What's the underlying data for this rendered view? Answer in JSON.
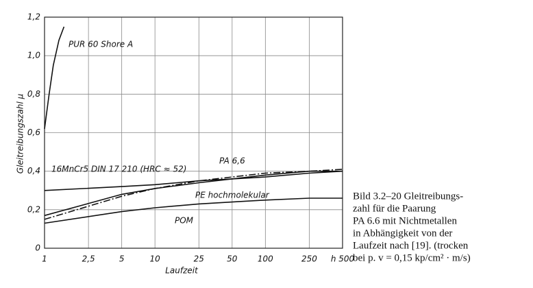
{
  "chart_data": {
    "type": "line",
    "y_label": "Gleitreibungszahl μ",
    "x_label": "Laufzeit",
    "xlog": true,
    "grid": true,
    "xlim": [
      1,
      500
    ],
    "ylim": [
      0,
      1.2
    ],
    "xticks": [
      1,
      {
        "value": 2.5,
        "label": "2,5"
      },
      5,
      10,
      25,
      50,
      100,
      250,
      {
        "value": 500,
        "label": "h 500"
      }
    ],
    "yticks": [
      0,
      {
        "value": 0.2,
        "label": "0,2"
      },
      {
        "value": 0.4,
        "label": "0,4"
      },
      {
        "value": 0.6,
        "label": "0,6"
      },
      {
        "value": 0.8,
        "label": "0,8"
      },
      {
        "value": 1.0,
        "label": "1,0"
      },
      {
        "value": 1.2,
        "label": "1,2"
      }
    ],
    "series": [
      {
        "name": "PUR 60 Shore A",
        "color": "#111111",
        "style": "solid",
        "x": [
          1,
          1.1,
          1.2,
          1.35,
          1.5
        ],
        "values": [
          0.62,
          0.8,
          0.95,
          1.08,
          1.15
        ]
      },
      {
        "name": "16MnCr5 DIN 17 210 (HRC ≈ 52)",
        "color": "#111111",
        "style": "solid",
        "x": [
          1,
          5,
          10,
          25,
          50,
          100,
          250,
          500
        ],
        "values": [
          0.3,
          0.32,
          0.33,
          0.35,
          0.36,
          0.37,
          0.39,
          0.4
        ]
      },
      {
        "name": "PA 6,6",
        "color": "#111111",
        "style": "dashdot",
        "x": [
          1,
          5,
          10,
          25,
          50,
          100,
          250,
          500
        ],
        "values": [
          0.15,
          0.27,
          0.31,
          0.35,
          0.37,
          0.39,
          0.4,
          0.41
        ]
      },
      {
        "name": "PE hochmolekular",
        "color": "#111111",
        "style": "solid",
        "x": [
          1,
          5,
          10,
          25,
          50,
          100,
          250,
          500
        ],
        "values": [
          0.17,
          0.28,
          0.31,
          0.34,
          0.36,
          0.38,
          0.4,
          0.4
        ]
      },
      {
        "name": "POM",
        "color": "#111111",
        "style": "solid",
        "x": [
          1,
          5,
          10,
          25,
          50,
          100,
          250,
          500
        ],
        "values": [
          0.13,
          0.19,
          0.21,
          0.23,
          0.24,
          0.25,
          0.26,
          0.26
        ]
      }
    ],
    "caption": [
      "Bild 3.2–20   Gleitreibungs-",
      "zahl für die Paarung",
      "PA 6.6 mit Nichtmetallen",
      "in Abhängigkeit von der",
      "Laufzeit nach [19]. (trocken",
      "bei p. v = 0,15 kp/cm² · m/s)"
    ]
  }
}
